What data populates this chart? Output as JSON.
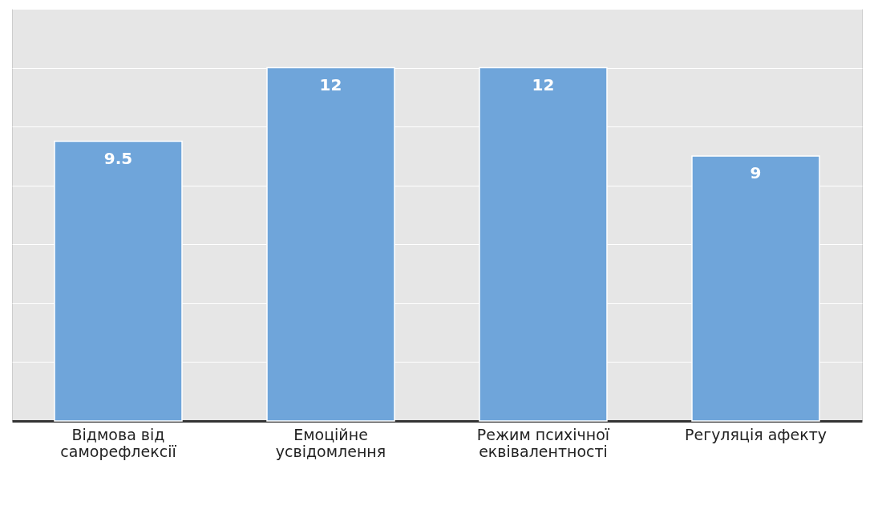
{
  "chart_data": {
    "type": "bar",
    "categories": [
      "Відмова від\nсаморефлексії",
      "Емоційне\nусвідомлення",
      "Режим психічної\nеквівалентності",
      "Регуляція афекту"
    ],
    "values": [
      9.5,
      12,
      12,
      9
    ],
    "color": "#6fa5da",
    "ylim": [
      0,
      14
    ],
    "yticks": [
      {
        "value": 0,
        "label": null
      },
      {
        "value": 2,
        "label": null
      },
      {
        "value": 4,
        "label": null
      },
      {
        "value": 6,
        "label": null
      },
      {
        "value": 8,
        "label": null
      },
      {
        "value": 10,
        "label": null
      },
      {
        "value": 12,
        "label": null
      },
      {
        "value": 14,
        "label": null
      }
    ],
    "grid": "y",
    "tick_labels": "x",
    "data_labels": true
  }
}
